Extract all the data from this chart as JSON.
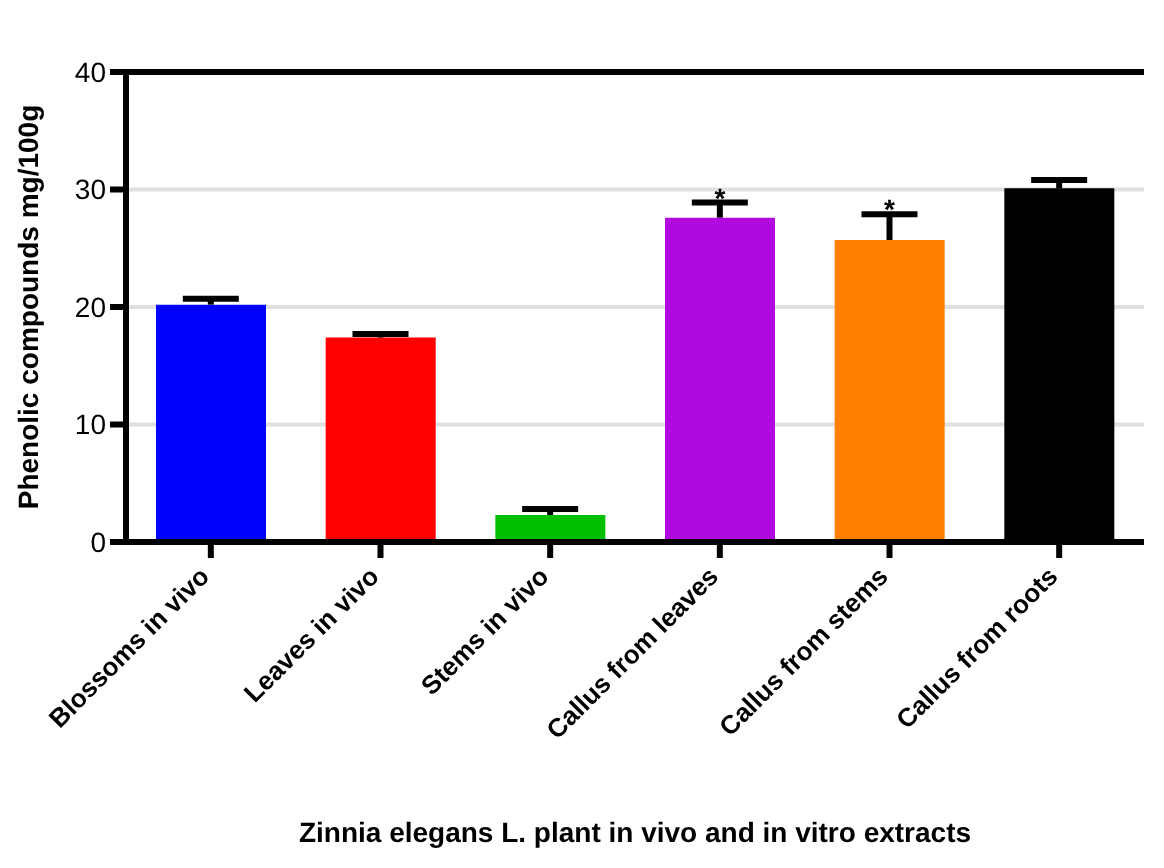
{
  "chart_data": {
    "type": "bar",
    "xlabel": "Zinnia elegans L. plant in vivo and in vitro extracts",
    "ylabel": "Phenolic compounds mg/100g",
    "categories": [
      "Blossoms in vivo",
      "Leaves in vivo",
      "Stems in vivo",
      "Callus from leaves",
      "Callus from stems",
      "Callus from roots"
    ],
    "values": [
      20.2,
      17.4,
      2.3,
      27.6,
      25.7,
      30.1
    ],
    "errors": [
      [
        20.2,
        20.7
      ],
      [
        17.4,
        17.7
      ],
      [
        2.3,
        2.8
      ],
      [
        27.6,
        28.9
      ],
      [
        25.7,
        27.9
      ],
      [
        30.1,
        30.8
      ]
    ],
    "colors": [
      "#0000ff",
      "#ff0000",
      "#00bf00",
      "#b00ae0",
      "#ff8000",
      "#000000"
    ],
    "ylim": [
      0,
      40
    ],
    "yticks": [
      0,
      10,
      20,
      30,
      40
    ],
    "grid": "y",
    "annotations": [
      {
        "text": "*",
        "x": "Callus from leaves",
        "y": 29.3
      },
      {
        "text": "*",
        "x": "Callus from stems",
        "y": 28.3
      }
    ]
  }
}
